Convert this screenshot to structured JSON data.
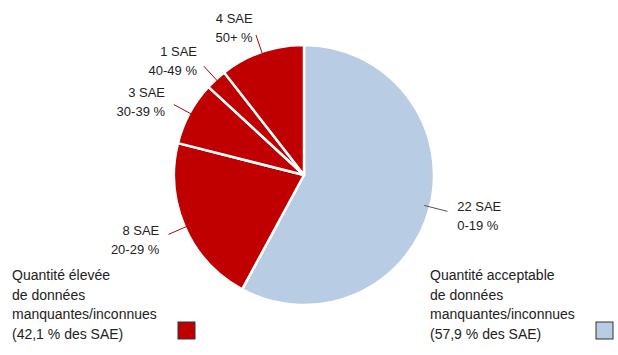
{
  "chart_data": {
    "type": "pie",
    "categories": [
      "0-19 %",
      "20-29 %",
      "30-39 %",
      "40-49 %",
      "50+ %"
    ],
    "values": [
      22,
      8,
      3,
      1,
      4
    ],
    "value_labels": [
      "22 SAE",
      "8 SAE",
      "3 SAE",
      "1 SAE",
      "4 SAE"
    ],
    "colors": [
      "#b8cce4",
      "#c00000",
      "#c00000",
      "#c00000",
      "#c00000"
    ],
    "legend_items": [
      {
        "lines": [
          "Quantité élevée",
          "de données",
          "manquantes/inconnues",
          "(42,1 % des SAE)"
        ],
        "color": "#c00000"
      },
      {
        "lines": [
          "Quantité acceptable",
          "de données",
          "manquantes/inconnues",
          "(57,9 % des SAE)"
        ],
        "color": "#b8cce4"
      }
    ]
  }
}
